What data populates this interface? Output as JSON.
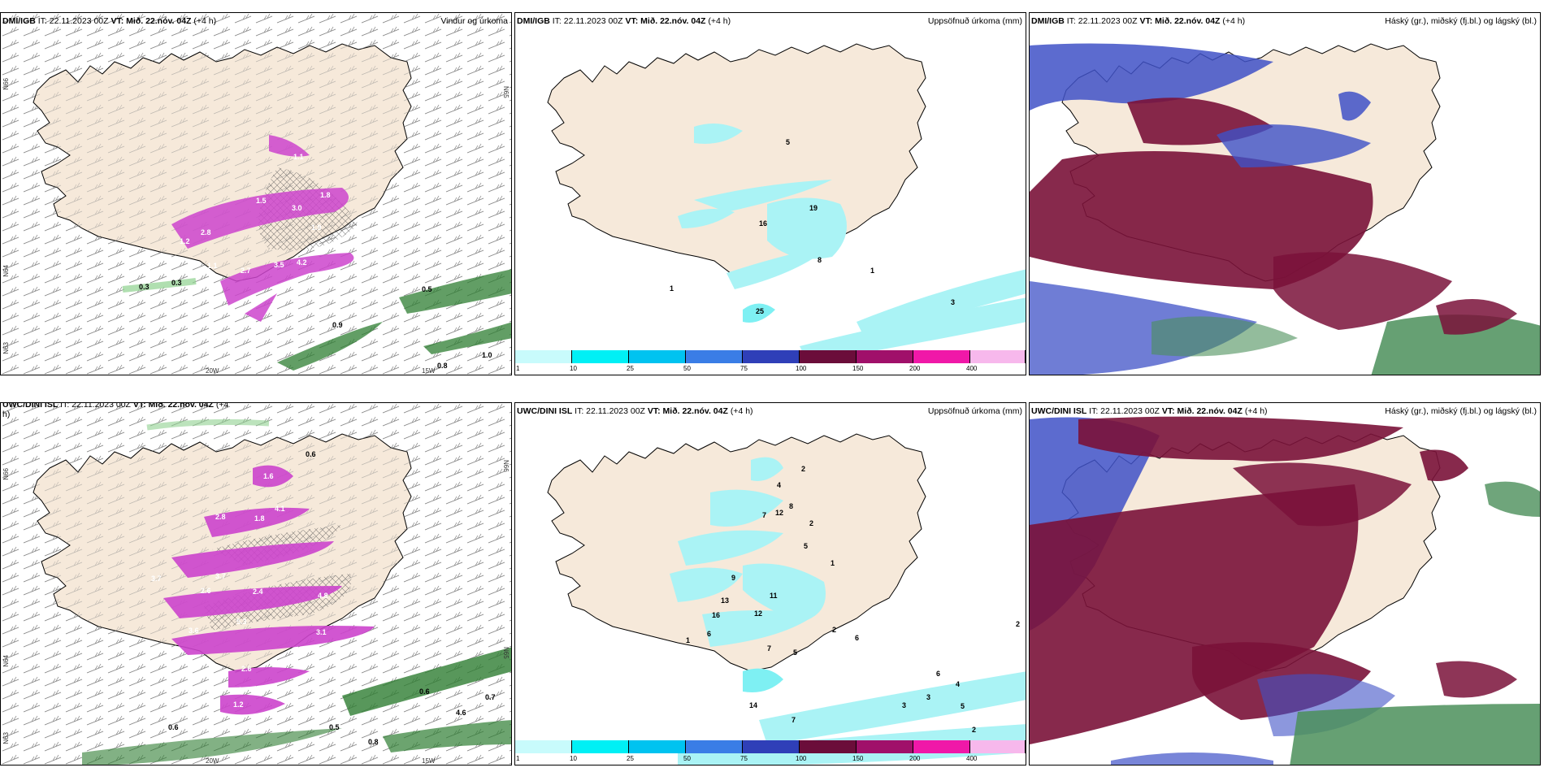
{
  "colors": {
    "land": "#f6e9da",
    "precip_light": "#aaf3f5",
    "wind_precip": "#cc44cc",
    "snow_green": "#2e7d32",
    "cloud_high": "#7a1239",
    "cloud_mid": "#3f51c7",
    "cloud_low": "#4b8f5a"
  },
  "panels": [
    {
      "id": "dmi-wind",
      "source": "DMI/IGB",
      "it_label": "IT: 22.11.2023 00Z",
      "vt_label": "VT: Mið. 22.nóv. 04Z",
      "lead": "(+4 h)",
      "right_title": "Vindur og úrkoma",
      "axis": {
        "lon_a": "20W",
        "lon_b": "15W",
        "lat_a": "N66",
        "lat_b": "N65",
        "lat_c": "N64",
        "lat_d": "N63"
      },
      "values": [
        "1.1",
        "1.8",
        "3.0",
        "1.5",
        "1.9",
        "2.8",
        "1.2",
        "1.1",
        "2.7",
        "3.5",
        "4.2",
        "3.0",
        "0.3",
        "0.3",
        "0.5",
        "0.9",
        "1.0",
        "0.8"
      ]
    },
    {
      "id": "dmi-precip",
      "source": "DMI/IGB",
      "it_label": "IT: 22.11.2023 00Z",
      "vt_label": "VT: Mið. 22.nóv. 04Z",
      "lead": "(+4 h)",
      "right_title": "Uppsöfnuð úrkoma (mm)",
      "values": [
        "5",
        "16",
        "19",
        "8",
        "1",
        "25",
        "3",
        "1"
      ]
    },
    {
      "id": "dmi-cloud",
      "source": "DMI/IGB",
      "it_label": "IT: 22.11.2023 00Z",
      "vt_label": "VT: Mið. 22.nóv. 04Z",
      "lead": "(+4 h)",
      "right_title": "Háský (gr.), miðský (fj.bl.) og lágský (bl.)"
    },
    {
      "id": "uwc-wind",
      "source": "UWC/DINI ISL",
      "it_label": "IT: 22.11.2023 00Z",
      "vt_label": "VT: Mið. 22.nóv. 04Z",
      "lead": "(+4",
      "lead_wrap": "h)",
      "right_title": "",
      "axis": {
        "lon_a": "20W",
        "lon_b": "15W",
        "lat_a": "N66",
        "lat_b": "N65",
        "lat_c": "N64",
        "lat_d": "N63"
      },
      "values": [
        "0.6",
        "1.6",
        "4.1",
        "1.8",
        "2.8",
        "3.7",
        "2.6",
        "2.4",
        "4.8",
        "5.3",
        "3.6",
        "3.1",
        "2.6",
        "1.9",
        "1.2",
        "3.7",
        "0.6",
        "0.5",
        "0.8",
        "4.6",
        "0.7",
        "0.6"
      ]
    },
    {
      "id": "uwc-precip",
      "source": "UWC/DINI ISL",
      "it_label": "IT: 22.11.2023 00Z",
      "vt_label": "VT: Mið. 22.nóv. 04Z",
      "lead": "(+4 h)",
      "right_title": "Uppsöfnuð úrkoma (mm)",
      "values": [
        "2",
        "4",
        "12",
        "8",
        "7",
        "2",
        "5",
        "1",
        "9",
        "11",
        "13",
        "16",
        "12",
        "6",
        "7",
        "5",
        "2",
        "6",
        "6",
        "3",
        "4",
        "5",
        "7",
        "2",
        "14",
        "1",
        "2",
        "3"
      ]
    },
    {
      "id": "uwc-cloud",
      "source": "UWC/DINI ISL",
      "it_label": "IT: 22.11.2023 00Z",
      "vt_label": "VT: Mið. 22.nóv. 04Z",
      "lead": "(+4 h)",
      "right_title": "Háský (gr.), miðský (fj.bl.) og lágský (bl.)"
    }
  ],
  "colorbar": {
    "ticks": [
      "1",
      "10",
      "25",
      "50",
      "75",
      "100",
      "150",
      "200",
      "400"
    ],
    "colors": [
      "#c8fbfc",
      "#00f0f5",
      "#00c3f0",
      "#3a7de6",
      "#2f3fb8",
      "#6b0d3a",
      "#a0106a",
      "#f018a8",
      "#f7b8ec"
    ]
  }
}
